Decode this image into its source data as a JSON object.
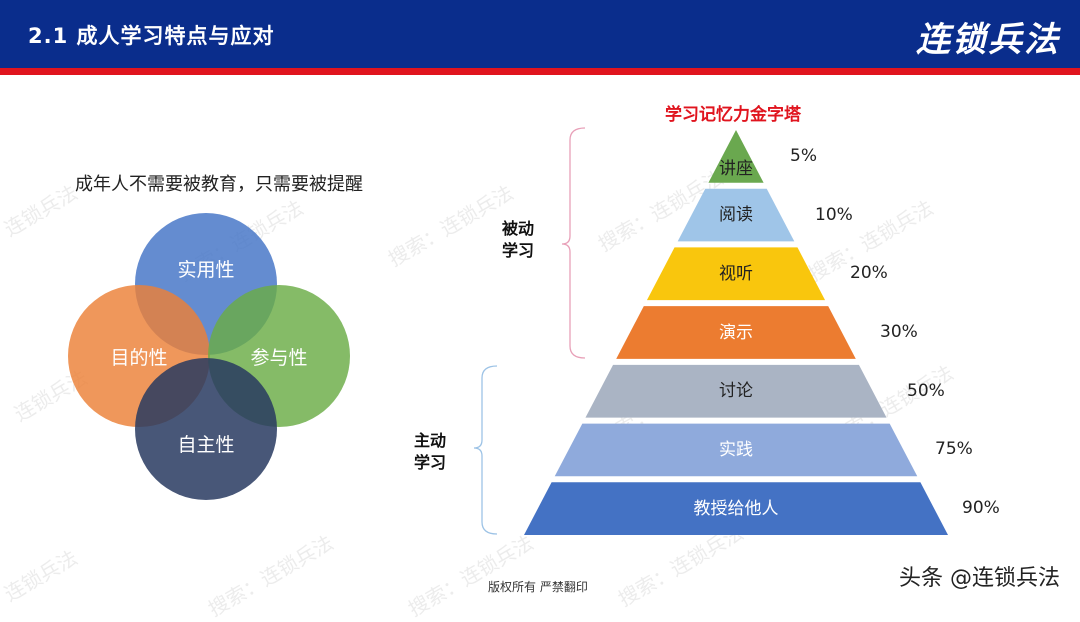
{
  "header": {
    "title": "2.1  成人学习特点与应对",
    "brand": "连锁兵法"
  },
  "left": {
    "subtitle": "成年人不需要被教育，只需要被提醒",
    "venn": {
      "top": "实用性",
      "left": "目的性",
      "right": "参与性",
      "bottom": "自主性"
    }
  },
  "pyramid": {
    "title": "学习记忆力金字塔",
    "passive_label": "被动\n学习",
    "active_label": "主动\n学习",
    "levels": [
      {
        "label": "讲座",
        "percent": "5%",
        "color": "#6aa84f"
      },
      {
        "label": "阅读",
        "percent": "10%",
        "color": "#9fc5e8"
      },
      {
        "label": "视听",
        "percent": "20%",
        "color": "#f9c60d"
      },
      {
        "label": "演示",
        "percent": "30%",
        "color": "#ec7c30"
      },
      {
        "label": "讨论",
        "percent": "50%",
        "color": "#aab4c4"
      },
      {
        "label": "实践",
        "percent": "75%",
        "color": "#8faadc"
      },
      {
        "label": "教授给他人",
        "percent": "90%",
        "color": "#4472c4"
      }
    ]
  },
  "footer": {
    "copyright": "版权所有  严禁翻印",
    "credit": "头条 @连锁兵法"
  }
}
